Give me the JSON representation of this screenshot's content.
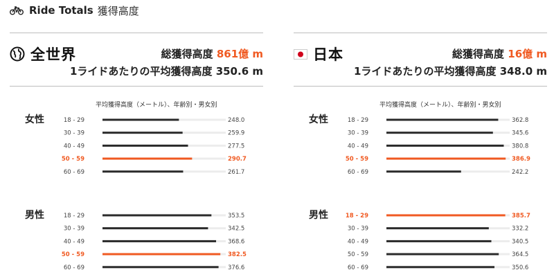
{
  "header": {
    "title": "Ride Totals",
    "subtitle": "獲得高度",
    "icon": "bicycle-icon"
  },
  "colors": {
    "accent": "#f05a22",
    "bar": "#2a2a2a",
    "track": "#ececec"
  },
  "panels": [
    {
      "region": "全世界",
      "icon": "globe-icon",
      "total_label": "総獲得高度",
      "total_value": "861億 m",
      "avg_label": "1ライドあたりの平均獲得高度",
      "avg_value": "350.6 m",
      "chart_title": "平均獲得高度（メートル）、年齢別・男女別"
    },
    {
      "region": "日本",
      "icon": "japan-flag-icon",
      "total_label": "総獲得高度",
      "total_value": "16億 m",
      "avg_label": "1ライドあたりの平均獲得高度",
      "avg_value": "348.0 m",
      "chart_title": "平均獲得高度（メートル）、年齢別・男女別"
    }
  ],
  "chart_data": [
    {
      "type": "bar",
      "orientation": "horizontal",
      "title": "平均獲得高度（メートル）、年齢別・男女別",
      "xlim": [
        0,
        400
      ],
      "groups": [
        {
          "name": "女性",
          "categories": [
            "18 - 29",
            "30 - 39",
            "40 - 49",
            "50 - 59",
            "60 - 69"
          ],
          "values": [
            248.0,
            259.9,
            277.5,
            290.7,
            261.7
          ],
          "labels": [
            "248.0",
            "259.9",
            "277.5",
            "290.7",
            "261.7"
          ],
          "highlight": "50 - 59"
        },
        {
          "name": "男性",
          "categories": [
            "18 - 29",
            "30 - 39",
            "40 - 49",
            "50 - 59",
            "60 - 69"
          ],
          "values": [
            353.5,
            342.5,
            368.6,
            382.5,
            376.6
          ],
          "labels": [
            "353.5",
            "342.5",
            "368.6",
            "382.5",
            "376.6"
          ],
          "highlight": "50 - 59"
        }
      ]
    },
    {
      "type": "bar",
      "orientation": "horizontal",
      "title": "平均獲得高度（メートル）、年齢別・男女別",
      "xlim": [
        0,
        400
      ],
      "groups": [
        {
          "name": "女性",
          "categories": [
            "18 - 29",
            "30 - 39",
            "40 - 49",
            "50 - 59",
            "60 - 69"
          ],
          "values": [
            362.8,
            345.6,
            380.8,
            386.9,
            242.2
          ],
          "labels": [
            "362.8",
            "345.6",
            "380.8",
            "386.9",
            "242.2"
          ],
          "highlight": "50 - 59"
        },
        {
          "name": "男性",
          "categories": [
            "18 - 29",
            "30 - 39",
            "40 - 49",
            "50 - 59",
            "60 - 69"
          ],
          "values": [
            385.7,
            332.2,
            340.5,
            364.5,
            350.6
          ],
          "labels": [
            "385.7",
            "332.2",
            "340.5",
            "364.5",
            "350.6"
          ],
          "highlight": "18 - 29"
        }
      ]
    }
  ]
}
